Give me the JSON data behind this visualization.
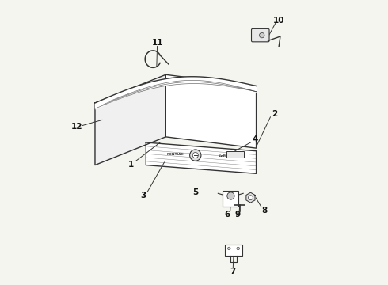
{
  "background_color": "#f5f5f0",
  "line_color": "#333333",
  "figsize": [
    4.9,
    3.6
  ],
  "dpi": 100
}
